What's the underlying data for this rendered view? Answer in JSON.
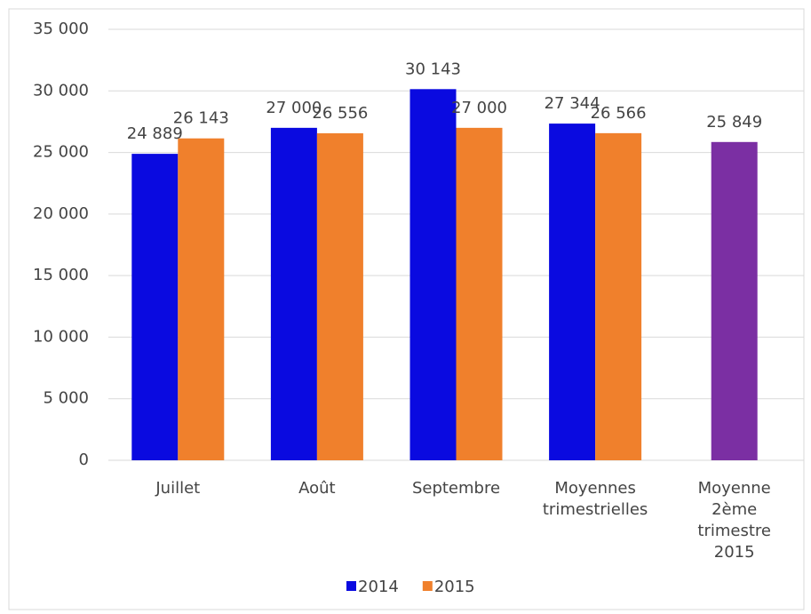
{
  "chart_data": {
    "type": "bar",
    "categories": [
      "Juillet",
      "Août",
      "Septembre",
      "Moyennes trimestrielles",
      "Moyenne 2ème trimestre 2015"
    ],
    "series": [
      {
        "name": "2014",
        "color": "#0a0ae0",
        "values": [
          24889,
          27000,
          30143,
          27344,
          null
        ],
        "value_labels": [
          "24 889",
          "27 000",
          "30 143",
          "27 344",
          null
        ]
      },
      {
        "name": "2015",
        "color": "#f0802c",
        "values": [
          26143,
          26556,
          27000,
          26566,
          25849
        ],
        "value_labels": [
          "26 143",
          "26 556",
          "27 000",
          "26 566",
          "25 849"
        ],
        "point_colors": [
          null,
          null,
          null,
          null,
          "#7b2fa3"
        ]
      }
    ],
    "ylim": [
      0,
      35000
    ],
    "yticks": [
      0,
      {
        "value": 5000,
        "label": "5 000"
      },
      {
        "value": 10000,
        "label": "10 000"
      },
      {
        "value": 15000,
        "label": "15 000"
      },
      {
        "value": 20000,
        "label": "20 000"
      },
      {
        "value": 25000,
        "label": "25 000"
      },
      {
        "value": 30000,
        "label": "30 000"
      },
      {
        "value": 35000,
        "label": "35 000"
      }
    ],
    "grid": true,
    "legend": "bottom"
  }
}
